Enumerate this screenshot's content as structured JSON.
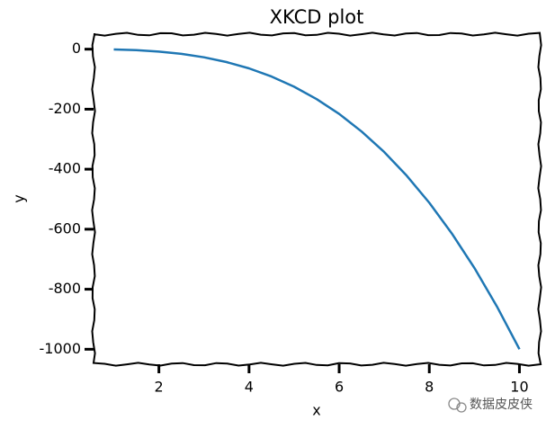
{
  "chart_data": {
    "type": "line",
    "title": "XKCD plot",
    "x_label": "x",
    "y_label": "y",
    "x": [
      1,
      1.5,
      2,
      2.5,
      3,
      3.5,
      4,
      4.5,
      5,
      5.5,
      6,
      6.5,
      7,
      7.5,
      8,
      8.5,
      9,
      9.5,
      10
    ],
    "series": [
      {
        "color": "#1f77b4",
        "values": [
          -1,
          -3.375,
          -8,
          -15.625,
          -27,
          -42.875,
          -64,
          -91.125,
          -125,
          -166.375,
          -216,
          -274.625,
          -343,
          -421.875,
          -512,
          -614.125,
          -729,
          -857.375,
          -1000
        ]
      }
    ],
    "xlim": [
      0.55,
      10.45
    ],
    "ylim": [
      -1050,
      50
    ],
    "xticks": [
      2,
      4,
      6,
      8,
      10
    ],
    "yticks": [
      0,
      -200,
      -400,
      -600,
      -800,
      -1000
    ],
    "watermark": "数据皮皮侠"
  }
}
